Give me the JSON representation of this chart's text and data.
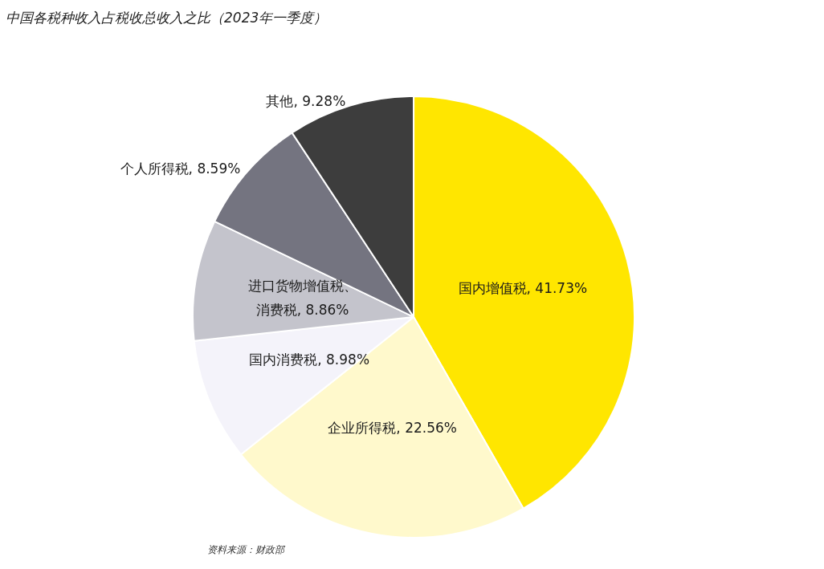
{
  "chart_data": {
    "type": "pie",
    "title": "中国各税种收入占税收总收入之比（2023年一季度）",
    "categories": [
      "国内增值税",
      "企业所得税",
      "国内消费税",
      "进口货物增值税、消费税",
      "个人所得税",
      "其他"
    ],
    "value_labels": [
      "41.73%",
      "22.56%",
      "8.98%",
      "8.86%",
      "8.59%",
      "9.28%"
    ],
    "values": [
      41.73,
      22.56,
      8.98,
      8.86,
      8.59,
      9.28
    ],
    "colors": [
      "#ffe600",
      "#fff9cc",
      "#f4f3fa",
      "#c4c4cc",
      "#747480",
      "#3d3d3d"
    ],
    "annotations": [
      "资料来源：财政部"
    ]
  }
}
